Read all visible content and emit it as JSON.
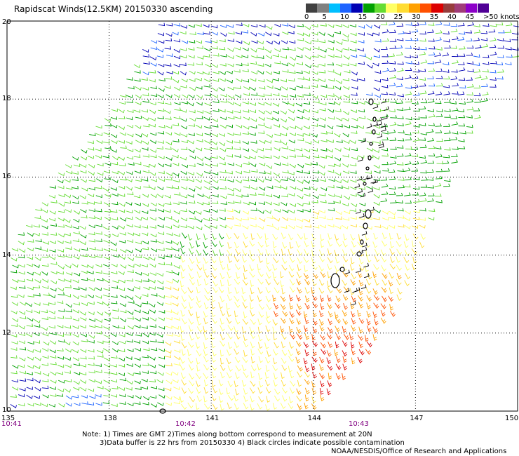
{
  "title": "Rapidscat Winds(12.5KM) 20150330 ascending",
  "legend": {
    "colors": [
      "#404040",
      "#808080",
      "#00bfff",
      "#1e64ff",
      "#0000b4",
      "#00a000",
      "#64dc32",
      "#ffff64",
      "#ffdc32",
      "#ffa000",
      "#ff5000",
      "#dc0000",
      "#963c3c",
      "#a03c78",
      "#8c00c8",
      "#500096"
    ],
    "labels": [
      "0",
      "5",
      "10",
      "15",
      "20",
      "25",
      "30",
      "35",
      "40",
      "45",
      ">50 knots"
    ]
  },
  "axes": {
    "lon_labels": [
      "135",
      "138",
      "141",
      "144",
      "147",
      "150"
    ],
    "lat_labels": [
      "10",
      "12",
      "14",
      "16",
      "18",
      "20"
    ],
    "time_labels": [
      "10:41",
      "10:42",
      "10:43"
    ],
    "lon_range": [
      135,
      150
    ],
    "lat_range": [
      10,
      20
    ]
  },
  "notes": {
    "line1": "Note: 1) Times are GMT 2)Times along bottom correspond to measurement at 20N",
    "line2": "3)Data buffer is 22 hrs from 20150330 4) Black circles indicate possible contamination",
    "credit": "NOAA/NESDIS/Office of Research and Applications"
  }
}
